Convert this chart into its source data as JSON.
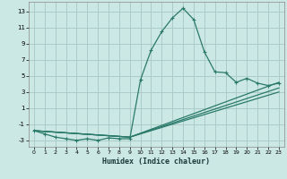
{
  "xlabel": "Humidex (Indice chaleur)",
  "bg_color": "#cce8e4",
  "grid_color": "#aaccc8",
  "line_color": "#2a7a6a",
  "xlim": [
    -0.5,
    23.5
  ],
  "ylim": [
    -3.8,
    14.2
  ],
  "xticks": [
    0,
    1,
    2,
    3,
    4,
    5,
    6,
    7,
    8,
    9,
    10,
    11,
    12,
    13,
    14,
    15,
    16,
    17,
    18,
    19,
    20,
    21,
    22,
    23
  ],
  "yticks": [
    -3,
    -1,
    1,
    3,
    5,
    7,
    9,
    11,
    13
  ],
  "curve1_x": [
    0,
    1,
    2,
    3,
    4,
    5,
    6,
    7,
    8,
    9,
    10,
    11,
    12,
    13,
    14,
    15,
    16,
    17,
    18,
    19,
    20,
    21,
    22,
    23
  ],
  "curve1_y": [
    -1.8,
    -2.2,
    -2.6,
    -2.8,
    -3.0,
    -2.8,
    -3.0,
    -2.7,
    -2.8,
    -2.8,
    4.5,
    8.2,
    10.5,
    12.2,
    13.4,
    12.0,
    8.0,
    5.5,
    5.4,
    4.2,
    4.7,
    4.1,
    3.8,
    4.1
  ],
  "curve2_x": [
    0,
    9,
    23
  ],
  "curve2_y": [
    -1.8,
    -2.6,
    4.2
  ],
  "curve3_x": [
    0,
    9,
    23
  ],
  "curve3_y": [
    -1.8,
    -2.6,
    3.5
  ],
  "curve4_x": [
    0,
    9,
    23
  ],
  "curve4_y": [
    -1.8,
    -2.6,
    3.0
  ]
}
